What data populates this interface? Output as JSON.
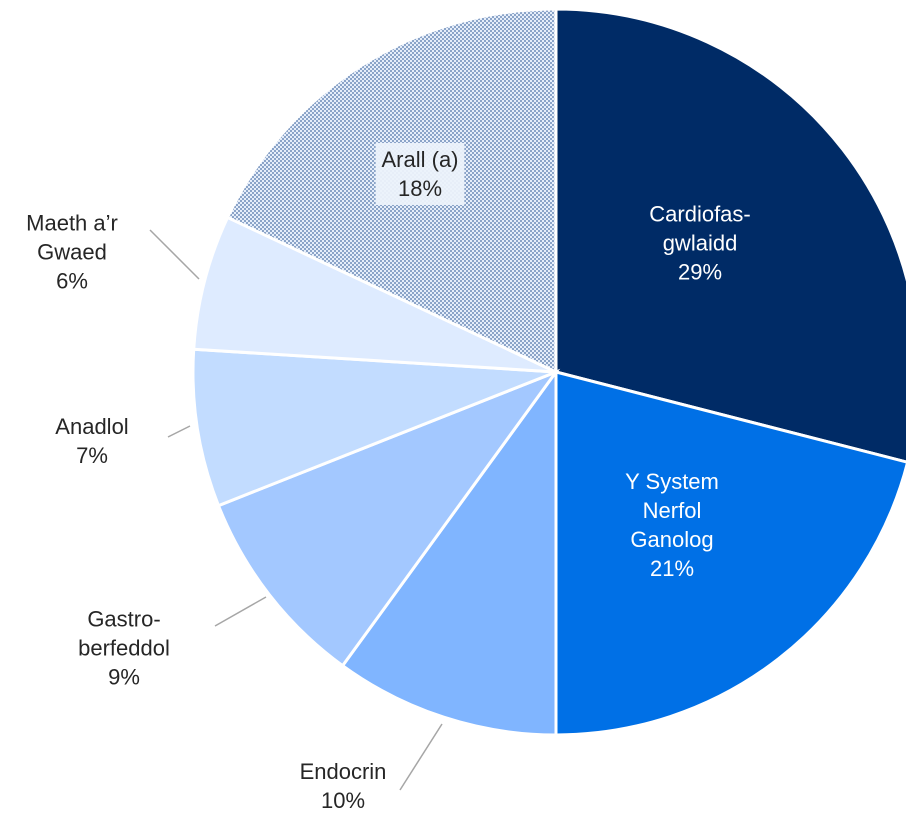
{
  "chart_data": {
    "type": "pie",
    "categories": [
      "Cardiofas-\ngwlaidd",
      "Y System\nNerfol\nGanolog",
      "Endocrin",
      "Gastro-\nberfeddol",
      "Anadlol",
      "Maeth a’r\nGwaed",
      "Arall (a)"
    ],
    "values": [
      29,
      21,
      10,
      9,
      7,
      6,
      18
    ],
    "value_labels": [
      "29%",
      "21%",
      "10%",
      "9%",
      "7%",
      "6%",
      "18%"
    ],
    "colors": [
      "#002b66",
      "#0070e6",
      "#80b5ff",
      "#a3c8ff",
      "#c2dcff",
      "#deebff",
      "pattern"
    ]
  }
}
